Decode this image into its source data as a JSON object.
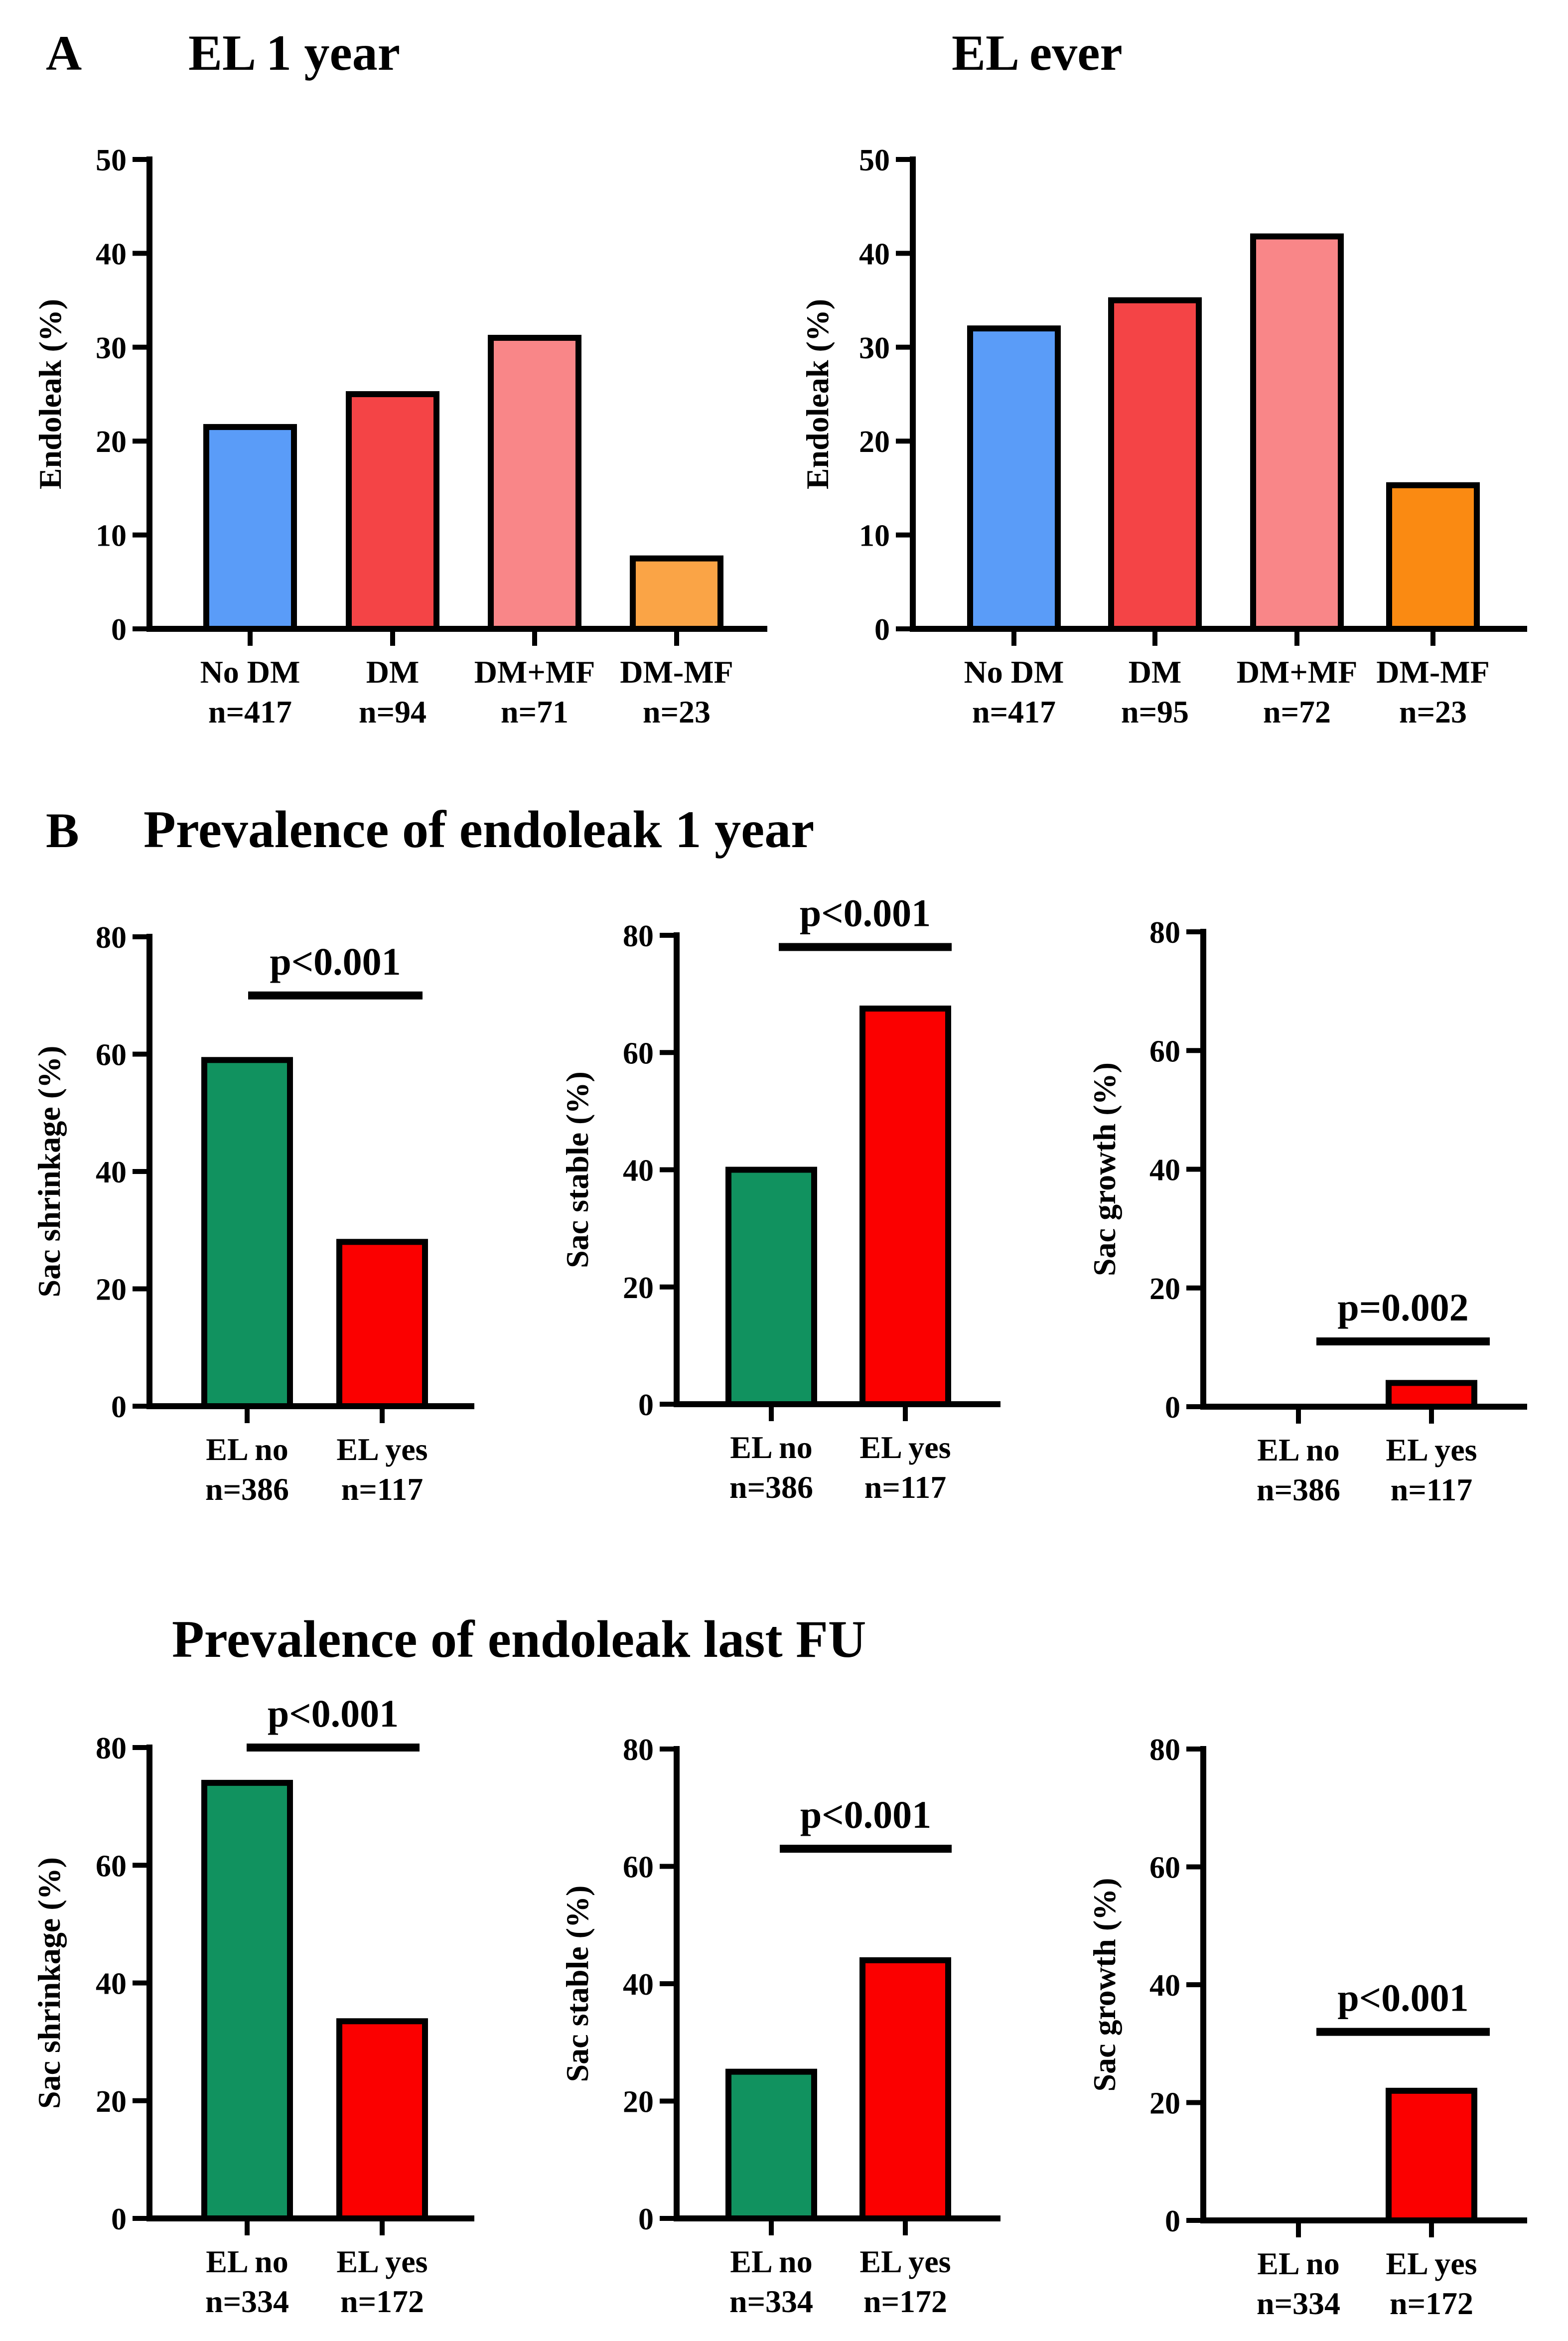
{
  "figure": {
    "panel_a_letter": "A",
    "panel_b_letter": "B",
    "section_b_title": "Prevalence of endoleak 1 year",
    "section_c_title": "Prevalence of endoleak last FU"
  },
  "colors": {
    "blue": "#5a9cf8",
    "red_dark": "#f44446",
    "red_light": "#f98688",
    "orange_light": "#faa446",
    "orange": "#fa8a12",
    "green": "#11925f",
    "red": "#fb0000"
  },
  "chart_data": [
    {
      "id": "a1",
      "type": "bar",
      "title": "EL 1 year",
      "xlabel": "",
      "ylabel": "Endoleak (%)",
      "ylim": [
        0,
        50
      ],
      "yticks": [
        0,
        10,
        20,
        30,
        40,
        50
      ],
      "categories": [
        [
          "No DM",
          "n=417"
        ],
        [
          "DM",
          "n=94"
        ],
        [
          "DM+MF",
          "n=71"
        ],
        [
          "DM-MF",
          "n=23"
        ]
      ],
      "values": [
        21.5,
        25,
        31,
        7.5
      ],
      "colors": [
        "blue",
        "red_dark",
        "red_light",
        "orange_light"
      ]
    },
    {
      "id": "a2",
      "type": "bar",
      "title": "EL ever",
      "xlabel": "",
      "ylabel": "Endoleak (%)",
      "ylim": [
        0,
        50
      ],
      "yticks": [
        0,
        10,
        20,
        30,
        40,
        50
      ],
      "categories": [
        [
          "No DM",
          "n=417"
        ],
        [
          "DM",
          "n=95"
        ],
        [
          "DM+MF",
          "n=72"
        ],
        [
          "DM-MF",
          "n=23"
        ]
      ],
      "values": [
        32,
        35,
        41.8,
        15.3
      ],
      "colors": [
        "blue",
        "red_dark",
        "red_light",
        "orange"
      ]
    },
    {
      "id": "b1",
      "type": "bar",
      "ylabel": "Sac shrinkage (%)",
      "ylim": [
        0,
        80
      ],
      "yticks": [
        0,
        20,
        40,
        60,
        80
      ],
      "categories": [
        [
          "EL no",
          "n=386"
        ],
        [
          "EL yes",
          "n=117"
        ]
      ],
      "values": [
        59,
        28
      ],
      "colors": [
        "green",
        "red"
      ],
      "pvalue": "p<0.001",
      "sig_level": 70
    },
    {
      "id": "b2",
      "type": "bar",
      "ylabel": "Sac stable (%)",
      "ylim": [
        0,
        80
      ],
      "yticks": [
        0,
        20,
        40,
        60,
        80
      ],
      "categories": [
        [
          "EL no",
          "n=386"
        ],
        [
          "EL yes",
          "n=117"
        ]
      ],
      "values": [
        40,
        67.5
      ],
      "colors": [
        "green",
        "red"
      ],
      "pvalue": "p<0.001",
      "sig_level": 78
    },
    {
      "id": "b3",
      "type": "bar",
      "ylabel": "Sac growth (%)",
      "ylim": [
        0,
        80
      ],
      "yticks": [
        0,
        20,
        40,
        60,
        80
      ],
      "categories": [
        [
          "EL no",
          "n=386"
        ],
        [
          "EL yes",
          "n=117"
        ]
      ],
      "values": [
        0,
        4
      ],
      "colors": [
        "green",
        "red"
      ],
      "pvalue": "p=0.002",
      "sig_level": 11
    },
    {
      "id": "c1",
      "type": "bar",
      "ylabel": "Sac shrinkage (%)",
      "ylim": [
        0,
        80
      ],
      "yticks": [
        0,
        20,
        40,
        60,
        80
      ],
      "categories": [
        [
          "EL no",
          "n=334"
        ],
        [
          "EL yes",
          "n=172"
        ]
      ],
      "values": [
        74,
        33.5
      ],
      "colors": [
        "green",
        "red"
      ],
      "pvalue": "p<0.001",
      "sig_level": 80
    },
    {
      "id": "c2",
      "type": "bar",
      "ylabel": "Sac stable (%)",
      "ylim": [
        0,
        80
      ],
      "yticks": [
        0,
        20,
        40,
        60,
        80
      ],
      "categories": [
        [
          "EL no",
          "n=334"
        ],
        [
          "EL yes",
          "n=172"
        ]
      ],
      "values": [
        25,
        44
      ],
      "colors": [
        "green",
        "red"
      ],
      "pvalue": "p<0.001",
      "sig_level": 63
    },
    {
      "id": "c3",
      "type": "bar",
      "ylabel": "Sac growth (%)",
      "ylim": [
        0,
        80
      ],
      "yticks": [
        0,
        20,
        40,
        60,
        80
      ],
      "categories": [
        [
          "EL no",
          "n=334"
        ],
        [
          "EL yes",
          "n=172"
        ]
      ],
      "values": [
        0,
        22
      ],
      "colors": [
        "green",
        "red"
      ],
      "pvalue": "p<0.001",
      "sig_level": 32
    }
  ]
}
